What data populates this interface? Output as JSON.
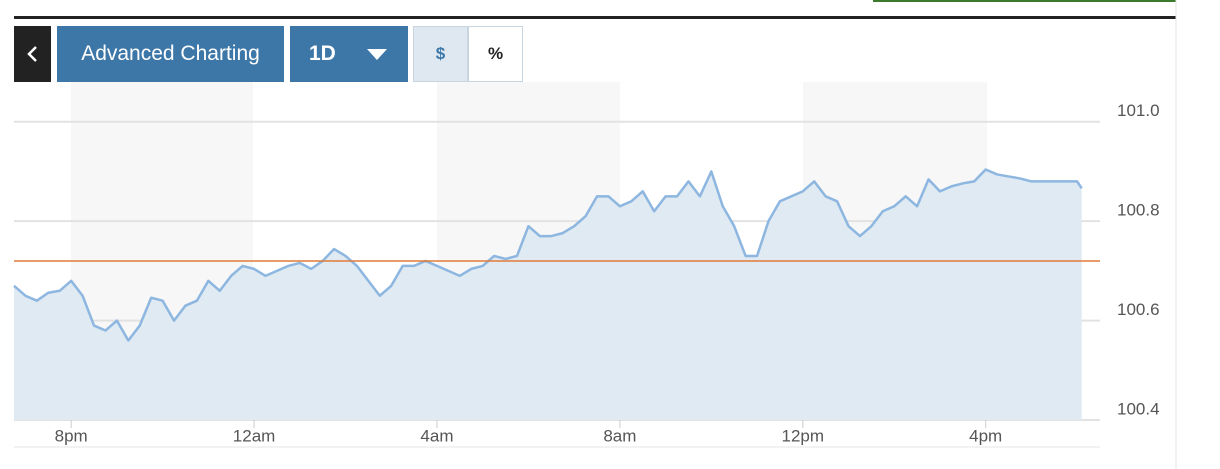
{
  "toolbar": {
    "title_button": "Advanced Charting",
    "range_button": "1D",
    "dollar_button": "$",
    "percent_button": "%"
  },
  "chart_data": {
    "type": "area",
    "series": [
      {
        "color": "#8db6e0",
        "fill": "#dfeaf2",
        "x": [
          -1.25,
          -1,
          -0.75,
          -0.5,
          -0.25,
          0,
          0.25,
          0.5,
          0.75,
          1,
          1.25,
          1.5,
          1.75,
          2,
          2.25,
          2.5,
          2.75,
          3,
          3.25,
          3.5,
          3.75,
          4,
          4.25,
          4.5,
          4.75,
          5,
          5.25,
          5.5,
          5.75,
          6,
          6.25,
          6.5,
          6.75,
          7,
          7.25,
          7.5,
          7.75,
          8,
          8.25,
          8.5,
          8.75,
          9,
          9.25,
          9.5,
          9.75,
          10,
          10.25,
          10.5,
          10.75,
          11,
          11.25,
          11.5,
          11.75,
          12,
          12.25,
          12.5,
          12.75,
          13,
          13.25,
          13.5,
          13.75,
          14,
          14.25,
          14.5,
          14.75,
          15,
          15.25,
          15.5,
          15.75,
          16,
          16.25,
          16.5,
          16.75,
          17,
          17.25,
          17.5,
          17.75,
          18,
          18.25,
          18.5,
          18.75,
          19,
          19.25,
          19.5,
          19.75,
          20,
          20.25,
          20.5,
          20.75,
          21,
          21.25,
          21.5,
          21.75,
          22,
          22.1
        ],
        "values": [
          100.67,
          100.65,
          100.64,
          100.656,
          100.66,
          100.68,
          100.65,
          100.59,
          100.58,
          100.6,
          100.56,
          100.59,
          100.646,
          100.64,
          100.6,
          100.63,
          100.64,
          100.68,
          100.66,
          100.69,
          100.71,
          100.704,
          100.69,
          100.7,
          100.71,
          100.716,
          100.704,
          100.72,
          100.744,
          100.73,
          100.71,
          100.68,
          100.65,
          100.67,
          100.71,
          100.71,
          100.72,
          100.71,
          100.7,
          100.69,
          100.704,
          100.71,
          100.73,
          100.724,
          100.73,
          100.79,
          100.77,
          100.77,
          100.776,
          100.79,
          100.81,
          100.85,
          100.85,
          100.83,
          100.84,
          100.86,
          100.82,
          100.85,
          100.85,
          100.88,
          100.85,
          100.9,
          100.83,
          100.79,
          100.73,
          100.73,
          100.8,
          100.84,
          100.85,
          100.86,
          100.88,
          100.85,
          100.84,
          100.79,
          100.77,
          100.79,
          100.82,
          100.83,
          100.85,
          100.83,
          100.884,
          100.86,
          100.87,
          100.876,
          100.88,
          100.904,
          100.894,
          100.89,
          100.886,
          100.88,
          100.88,
          100.88,
          100.88,
          100.88,
          100.866
        ]
      }
    ],
    "reference_line": {
      "value": 100.72,
      "color": "#e07b39"
    },
    "xlim": [
      -1.25,
      22.5
    ],
    "xticks": [
      {
        "value": 0,
        "label": "8pm"
      },
      {
        "value": 4,
        "label": "12am"
      },
      {
        "value": 8,
        "label": "4am"
      },
      {
        "value": 12,
        "label": "8am"
      },
      {
        "value": 16,
        "label": "12pm"
      },
      {
        "value": 20,
        "label": "4pm"
      }
    ],
    "ylim": [
      100.4,
      101.08
    ],
    "yticks": [
      {
        "value": 100.4,
        "label": "100.4"
      },
      {
        "value": 100.6,
        "label": "100.6"
      },
      {
        "value": 100.8,
        "label": "100.8"
      },
      {
        "value": 101.0,
        "label": "101.0"
      }
    ],
    "grid": true
  }
}
